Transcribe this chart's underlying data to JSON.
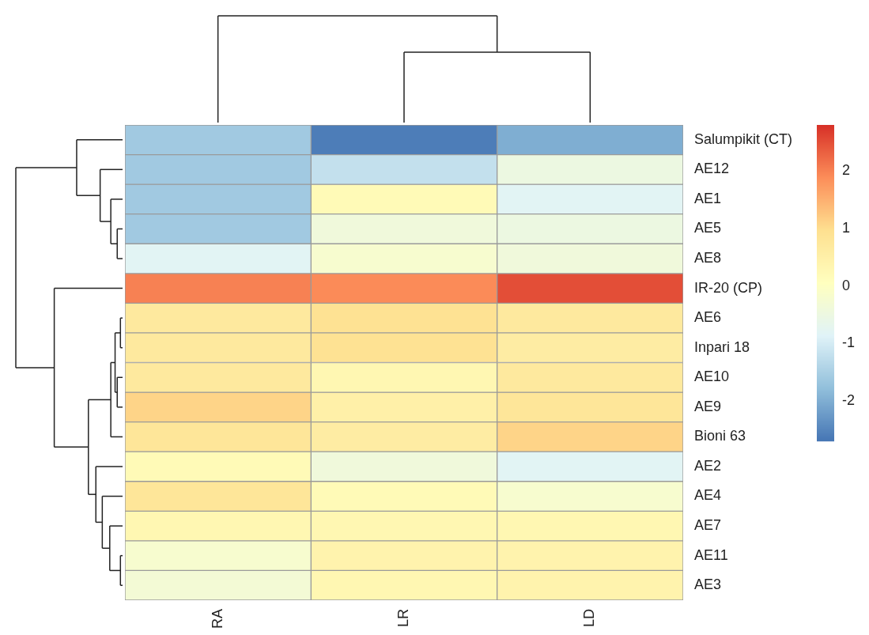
{
  "chart_data": {
    "type": "heatmap",
    "categories": [
      "RA",
      "LR",
      "LD"
    ],
    "y_categories": [
      "Salumpikit (CT)",
      "AE12",
      "AE1",
      "AE5",
      "AE8",
      "IR-20 (CP)",
      "AE6",
      "Inpari 18",
      "AE10",
      "AE9",
      "Bioni 63",
      "AE2",
      "AE4",
      "AE7",
      "AE11",
      "AE3"
    ],
    "cells": [
      [
        -1.6,
        -2.6,
        -2.0
      ],
      [
        -1.6,
        -1.2,
        -0.5
      ],
      [
        -1.6,
        0.2,
        -0.8
      ],
      [
        -1.6,
        -0.4,
        -0.5
      ],
      [
        -0.8,
        -0.2,
        -0.4
      ],
      [
        2.0,
        1.9,
        2.5
      ],
      [
        0.7,
        0.9,
        0.7
      ],
      [
        0.7,
        0.9,
        0.6
      ],
      [
        0.7,
        0.3,
        0.7
      ],
      [
        1.1,
        0.5,
        0.8
      ],
      [
        0.8,
        0.6,
        1.1
      ],
      [
        0.2,
        -0.4,
        -0.8
      ],
      [
        0.8,
        0.2,
        -0.2
      ],
      [
        0.3,
        0.3,
        0.3
      ],
      [
        -0.2,
        0.4,
        0.4
      ],
      [
        -0.3,
        0.3,
        0.4
      ]
    ],
    "clim": [
      -2.7,
      2.8
    ],
    "cticks": [
      -2,
      -1,
      0,
      1,
      2
    ]
  }
}
